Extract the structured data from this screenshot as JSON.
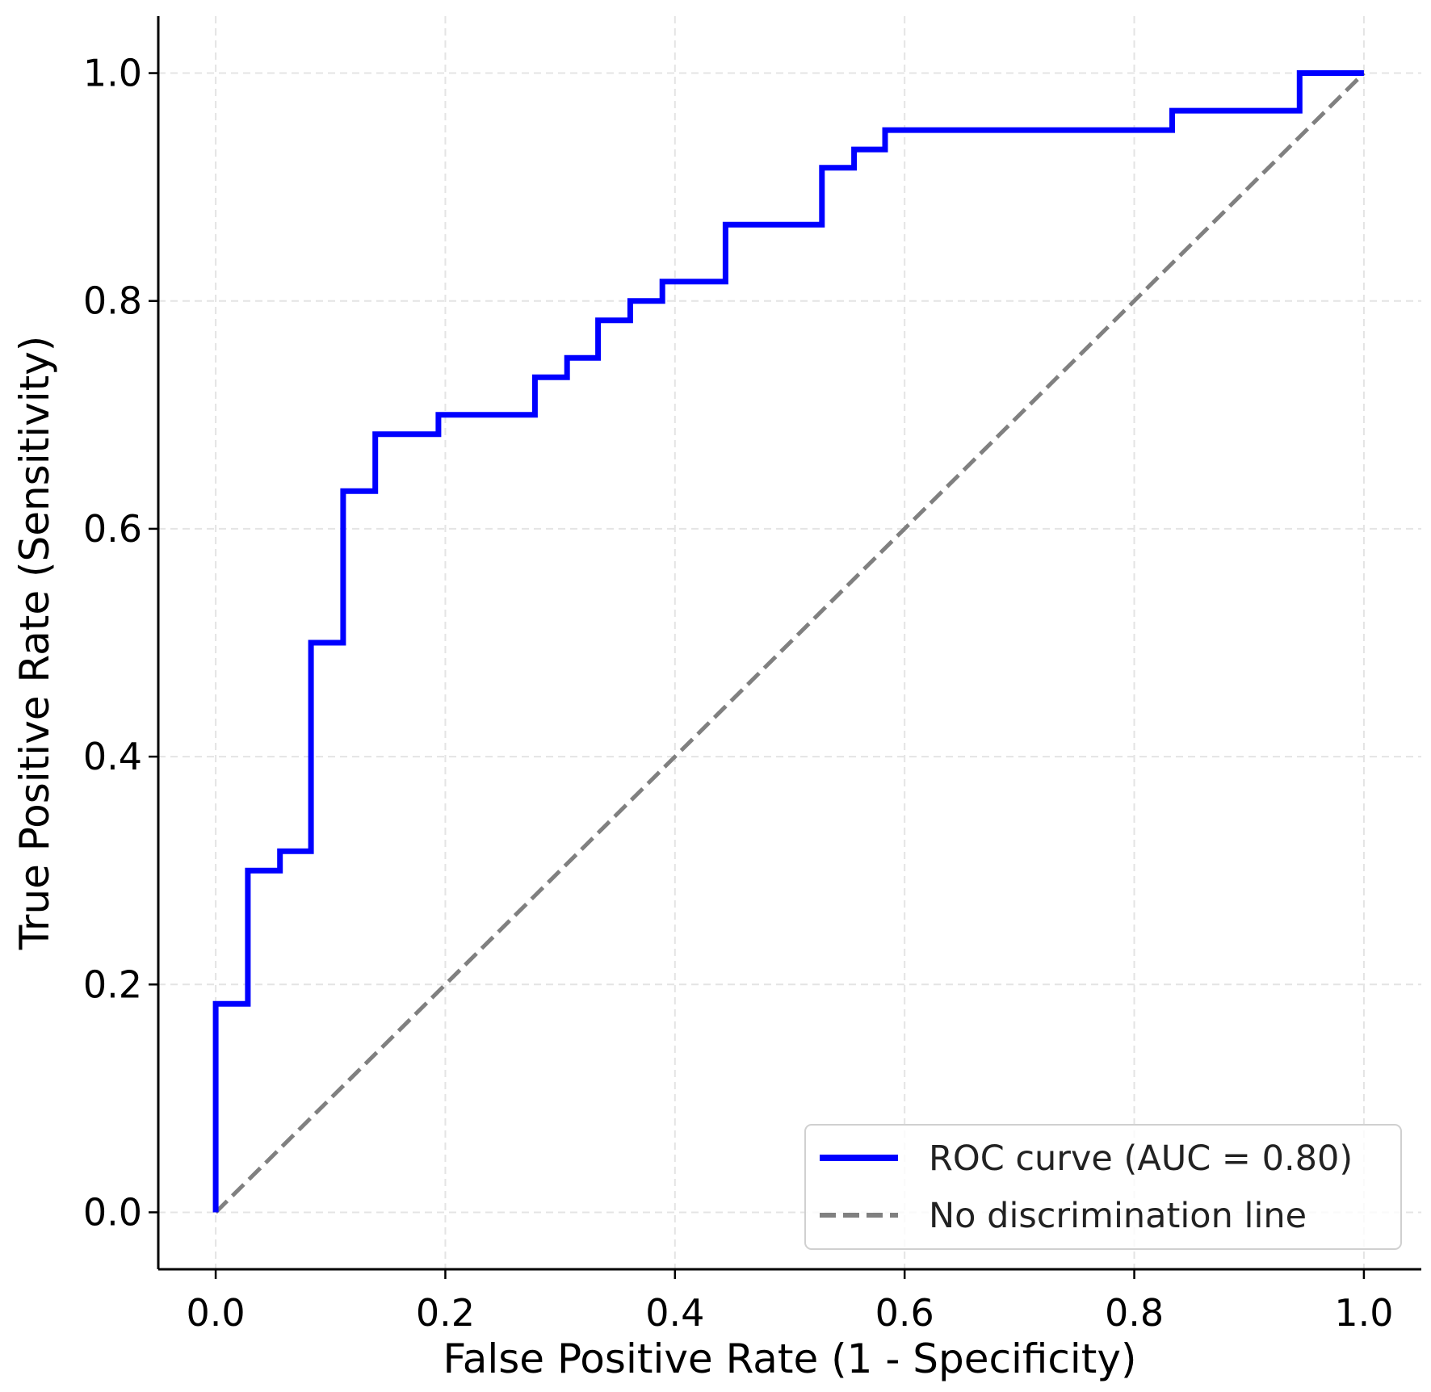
{
  "chart_data": {
    "type": "line",
    "title": "",
    "xlabel": "False Positive Rate (1 - Specificity)",
    "ylabel": "True Positive Rate (Sensitivity)",
    "xlim": [
      -0.05,
      1.05
    ],
    "ylim": [
      -0.05,
      1.05
    ],
    "xticks": [
      "0.0",
      "0.2",
      "0.4",
      "0.6",
      "0.8",
      "1.0"
    ],
    "yticks": [
      "0.0",
      "0.2",
      "0.4",
      "0.6",
      "0.8",
      "1.0"
    ],
    "grid": true,
    "legend_position": "lower-right",
    "series": [
      {
        "name": "ROC curve (AUC = 0.80)",
        "color": "#0000ff",
        "style": "solid",
        "x": [
          0,
          0,
          0.028,
          0.028,
          0.056,
          0.056,
          0.083,
          0.083,
          0.111,
          0.111,
          0.139,
          0.139,
          0.194,
          0.194,
          0.278,
          0.278,
          0.306,
          0.306,
          0.333,
          0.333,
          0.361,
          0.361,
          0.389,
          0.389,
          0.444,
          0.444,
          0.528,
          0.528,
          0.556,
          0.556,
          0.583,
          0.583,
          0.833,
          0.833,
          0.944,
          0.944,
          1.0
        ],
        "y": [
          0,
          0.183,
          0.183,
          0.3,
          0.3,
          0.317,
          0.317,
          0.5,
          0.5,
          0.633,
          0.633,
          0.683,
          0.683,
          0.7,
          0.7,
          0.733,
          0.733,
          0.75,
          0.75,
          0.783,
          0.783,
          0.8,
          0.8,
          0.817,
          0.817,
          0.867,
          0.867,
          0.917,
          0.917,
          0.933,
          0.933,
          0.95,
          0.95,
          0.967,
          0.967,
          1.0,
          1.0
        ]
      },
      {
        "name": "No discrimination line",
        "color": "#808080",
        "style": "dashed",
        "x": [
          0,
          1
        ],
        "y": [
          0,
          1
        ]
      }
    ]
  }
}
